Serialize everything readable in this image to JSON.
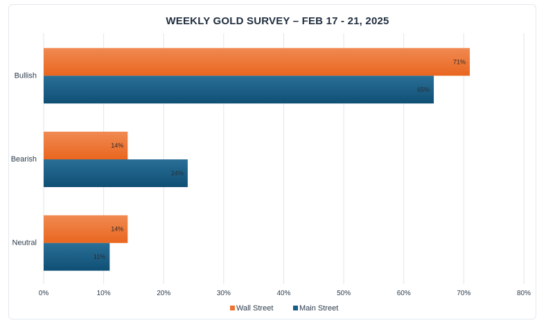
{
  "chart_data": {
    "type": "bar",
    "orientation": "horizontal",
    "title": "WEEKLY GOLD SURVEY – FEB 17 - 21, 2025",
    "categories": [
      "Bullish",
      "Bearish",
      "Neutral"
    ],
    "series": [
      {
        "name": "Wall Street",
        "values": [
          71,
          14,
          14
        ],
        "labels": [
          "71%",
          "14%",
          "14%"
        ],
        "color": "#ef7230"
      },
      {
        "name": "Main Street",
        "values": [
          65,
          24,
          11
        ],
        "labels": [
          "65%",
          "24%",
          "11%"
        ],
        "color": "#185d85"
      }
    ],
    "xlim": [
      0,
      80
    ],
    "ticks": [
      0,
      10,
      20,
      30,
      40,
      50,
      60,
      70,
      80
    ],
    "tick_labels": [
      "0%",
      "10%",
      "20%",
      "30%",
      "40%",
      "50%",
      "60%",
      "70%",
      "80%"
    ],
    "grid": true,
    "legend_position": "bottom"
  }
}
